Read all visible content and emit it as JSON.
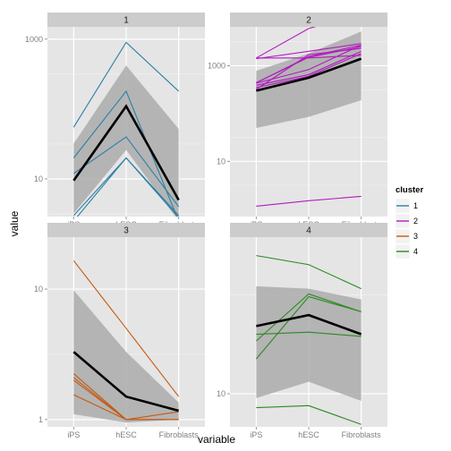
{
  "chart_data": {
    "type": "line",
    "facet_by": "cluster",
    "xlabel": "variable",
    "ylabel": "value",
    "categories": [
      "iPS",
      "hESC",
      "Fibroblasts"
    ],
    "legend": {
      "title": "cluster",
      "placement": "right",
      "entries": [
        {
          "label": "1",
          "color": "#2c7fa6"
        },
        {
          "label": "2",
          "color": "#b21bbf"
        },
        {
          "label": "3",
          "color": "#c45a12"
        },
        {
          "label": "4",
          "color": "#2a8a1f"
        }
      ]
    },
    "panels": [
      {
        "strip": "1",
        "color": "#2c7fa6",
        "y_scale": "log10",
        "ylim": [
          2.9,
          1500
        ],
        "y_ticks": [
          {
            "value": 10,
            "label": "10"
          },
          {
            "value": 1000,
            "label": "1000"
          }
        ],
        "lines": [
          [
            55,
            900,
            180
          ],
          [
            20,
            180,
            2.5
          ],
          [
            12,
            40,
            4
          ],
          [
            3,
            20,
            2.8
          ],
          [
            2.5,
            20,
            3
          ]
        ],
        "mean": [
          9.5,
          110,
          5
        ],
        "band_upper": [
          32,
          420,
          52
        ],
        "band_lower": [
          3.2,
          26,
          2.5
        ]
      },
      {
        "strip": "2",
        "color": "#b21bbf",
        "y_scale": "log10",
        "ylim": [
          0.7,
          6500
        ],
        "y_ticks": [
          {
            "value": 10,
            "label": "10"
          },
          {
            "value": 1000,
            "label": "1000"
          }
        ],
        "lines": [
          [
            1450,
            1450,
            1650
          ],
          [
            430,
            830,
            2700
          ],
          [
            390,
            650,
            2000
          ],
          [
            1450,
            6000,
            12500
          ],
          [
            1400,
            2000,
            2900
          ],
          [
            440,
            1500,
            2500
          ],
          [
            320,
            1700,
            2300
          ],
          [
            350,
            600,
            1800
          ],
          [
            440,
            1550,
            2700
          ],
          [
            1.15,
            1.5,
            1.85
          ]
        ],
        "mean": [
          300,
          560,
          1400
        ],
        "band_upper": [
          780,
          1800,
          5200
        ],
        "band_lower": [
          50,
          85,
          190
        ]
      },
      {
        "strip": "3",
        "color": "#c45a12",
        "y_scale": "log10",
        "ylim": [
          0.88,
          25
        ],
        "y_ticks": [
          {
            "value": 1,
            "label": "1"
          },
          {
            "value": 10,
            "label": "10"
          }
        ],
        "lines": [
          [
            16.5,
            5,
            1.5
          ],
          [
            2.25,
            1,
            1.0
          ],
          [
            2.1,
            1,
            1.15
          ],
          [
            1.55,
            1,
            1.0
          ],
          [
            2.0,
            1,
            1.0
          ]
        ],
        "mean": [
          3.3,
          1.5,
          1.17
        ],
        "band_upper": [
          9.8,
          3.3,
          1.35
        ],
        "band_lower": [
          1.1,
          0.95,
          1.0
        ]
      },
      {
        "strip": "4",
        "color": "#2a8a1f",
        "y_scale": "log10",
        "ylim": [
          6.8,
          62
        ],
        "y_ticks": [
          {
            "value": 10,
            "label": "10"
          }
        ],
        "lines": [
          [
            50,
            45,
            34
          ],
          [
            18.5,
            32,
            26
          ],
          [
            20,
            20.5,
            19.5
          ],
          [
            15,
            31,
            26
          ],
          [
            8.5,
            8.7,
            7
          ]
        ],
        "mean": [
          22,
          25,
          20
        ],
        "band_upper": [
          35,
          34,
          30
        ],
        "band_lower": [
          9.5,
          11.5,
          9.2
        ]
      }
    ]
  }
}
